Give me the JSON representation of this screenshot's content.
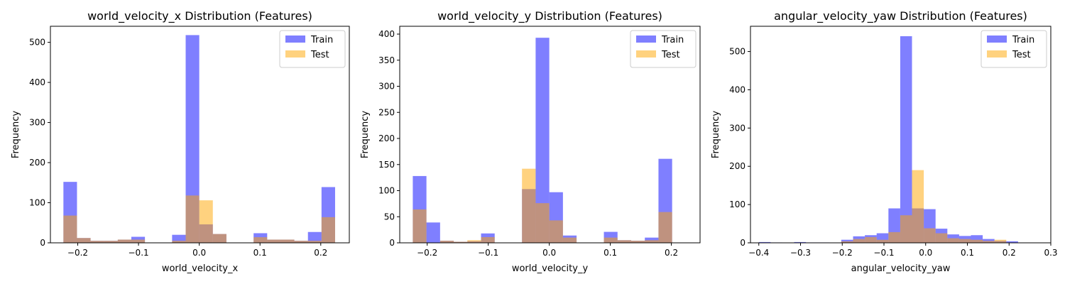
{
  "chart_data": [
    {
      "type": "histogram",
      "title": "world_velocity_x Distribution (Features)",
      "xlabel": "world_velocity_x",
      "ylabel": "Frequency",
      "xlim": [
        -0.245,
        0.247
      ],
      "ylim": [
        0,
        540
      ],
      "xticks": [
        -0.2,
        -0.1,
        0.0,
        0.1,
        0.2
      ],
      "xtick_labels": [
        "−0.2",
        "−0.1",
        "0.0",
        "0.1",
        "0.2"
      ],
      "yticks": [
        0,
        100,
        200,
        300,
        400,
        500
      ],
      "ytick_labels": [
        "0",
        "100",
        "200",
        "300",
        "400",
        "500"
      ],
      "legend_position": "top-right",
      "series": [
        {
          "name": "Train",
          "color": "#0000ff",
          "opacity": 0.5,
          "bin_start": -0.2236,
          "bin_width": 0.02236,
          "counts": [
            152,
            12,
            5,
            5,
            8,
            15,
            0,
            0,
            20,
            518,
            46,
            22,
            0,
            0,
            24,
            8,
            8,
            5,
            27,
            139
          ]
        },
        {
          "name": "Test",
          "color": "#ffa500",
          "opacity": 0.5,
          "bin_start": -0.2236,
          "bin_width": 0.02236,
          "counts": [
            68,
            12,
            5,
            5,
            8,
            8,
            0,
            0,
            5,
            118,
            106,
            22,
            0,
            0,
            14,
            8,
            8,
            5,
            5,
            64
          ]
        }
      ]
    },
    {
      "type": "histogram",
      "title": "world_velocity_y Distribution (Features)",
      "xlabel": "world_velocity_y",
      "ylabel": "Frequency",
      "xlim": [
        -0.245,
        0.247
      ],
      "ylim": [
        0,
        415
      ],
      "xticks": [
        -0.2,
        -0.1,
        0.0,
        0.1,
        0.2
      ],
      "xtick_labels": [
        "−0.2",
        "−0.1",
        "0.0",
        "0.1",
        "0.2"
      ],
      "yticks": [
        0,
        50,
        100,
        150,
        200,
        250,
        300,
        350,
        400
      ],
      "ytick_labels": [
        "0",
        "50",
        "100",
        "150",
        "200",
        "250",
        "300",
        "350",
        "400"
      ],
      "legend_position": "top-right",
      "series": [
        {
          "name": "Train",
          "color": "#0000ff",
          "opacity": 0.5,
          "bin_start": -0.2236,
          "bin_width": 0.02236,
          "counts": [
            128,
            39,
            4,
            2,
            3,
            18,
            0,
            0,
            103,
            393,
            97,
            14,
            0,
            0,
            21,
            5,
            4,
            10,
            161,
            0
          ]
        },
        {
          "name": "Test",
          "color": "#ffa500",
          "opacity": 0.5,
          "bin_start": -0.2236,
          "bin_width": 0.02236,
          "counts": [
            64,
            0,
            4,
            2,
            5,
            11,
            0,
            0,
            142,
            76,
            43,
            10,
            0,
            0,
            10,
            5,
            4,
            5,
            59,
            0
          ]
        }
      ]
    },
    {
      "type": "histogram",
      "title": "angular_velocity_yaw Distribution (Features)",
      "xlabel": "angular_velocity_yaw",
      "ylabel": "Frequency",
      "xlim": [
        -0.42,
        0.3
      ],
      "ylim": [
        0,
        566
      ],
      "xticks": [
        -0.4,
        -0.3,
        -0.2,
        -0.1,
        0.0,
        0.1,
        0.2,
        0.3
      ],
      "xtick_labels": [
        "−0.4",
        "−0.3",
        "−0.2",
        "−0.1",
        "0.0",
        "0.1",
        "0.2",
        "0.3"
      ],
      "yticks": [
        0,
        100,
        200,
        300,
        400,
        500
      ],
      "ytick_labels": [
        "0",
        "100",
        "200",
        "300",
        "400",
        "500"
      ],
      "legend_position": "top-right",
      "series": [
        {
          "name": "Train",
          "color": "#0000ff",
          "opacity": 0.5,
          "bin_start": -0.4,
          "bin_width": 0.02825,
          "counts": [
            2,
            1,
            0,
            2,
            1,
            1,
            0,
            8,
            17,
            20,
            25,
            90,
            540,
            90,
            88,
            37,
            22,
            18,
            20,
            10,
            5,
            4
          ]
        },
        {
          "name": "Test",
          "color": "#ffa500",
          "opacity": 0.5,
          "bin_start": -0.4,
          "bin_width": 0.02825,
          "counts": [
            0,
            0,
            0,
            0,
            0,
            0,
            0,
            4,
            10,
            15,
            8,
            28,
            72,
            190,
            38,
            25,
            12,
            10,
            8,
            5,
            8,
            0
          ]
        }
      ]
    }
  ]
}
